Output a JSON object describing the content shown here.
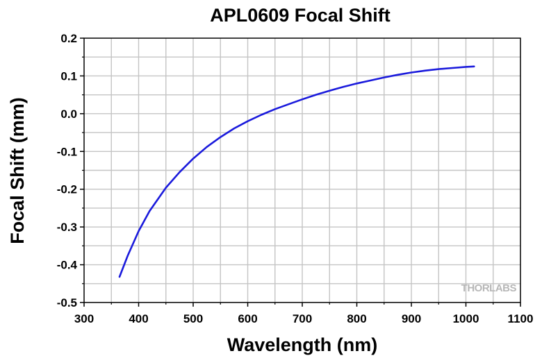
{
  "chart_data": {
    "type": "line",
    "title": "APL0609 Focal Shift",
    "xlabel": "Wavelength (nm)",
    "ylabel": "Focal Shift (mm)",
    "xlim": [
      300,
      1100
    ],
    "ylim": [
      -0.5,
      0.2
    ],
    "xticks": [
      300,
      400,
      500,
      600,
      700,
      800,
      900,
      1000,
      1100
    ],
    "xtick_labels": [
      "300",
      "400",
      "500",
      "600",
      "700",
      "800",
      "900",
      "1000",
      "1100"
    ],
    "yticks": [
      0.2,
      0.1,
      0.0,
      -0.1,
      -0.2,
      -0.3,
      -0.4,
      -0.5
    ],
    "ytick_labels": [
      "0.2",
      "0.1",
      "0.0",
      "-0.1",
      "-0.2",
      "-0.3",
      "-0.4",
      "-0.5"
    ],
    "grid": true,
    "series": [
      {
        "color": "#1a1adc",
        "x": [
          365,
          380,
          400,
          420,
          450,
          475,
          500,
          525,
          550,
          575,
          600,
          625,
          650,
          675,
          700,
          725,
          750,
          775,
          800,
          825,
          850,
          875,
          900,
          925,
          950,
          975,
          1000,
          1015
        ],
        "y": [
          -0.432,
          -0.376,
          -0.311,
          -0.258,
          -0.196,
          -0.155,
          -0.119,
          -0.088,
          -0.062,
          -0.039,
          -0.02,
          -0.003,
          0.012,
          0.025,
          0.038,
          0.05,
          0.061,
          0.071,
          0.08,
          0.088,
          0.096,
          0.103,
          0.109,
          0.114,
          0.118,
          0.121,
          0.124,
          0.125
        ]
      }
    ]
  },
  "watermark": "THORLABS"
}
